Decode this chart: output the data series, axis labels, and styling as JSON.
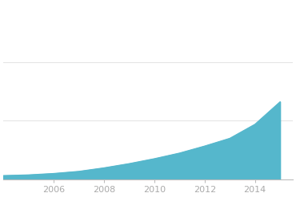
{
  "years": [
    2004,
    2005,
    2006,
    2007,
    2008,
    2009,
    2010,
    2011,
    2012,
    2013,
    2014,
    2015
  ],
  "values": [
    50,
    60,
    80,
    110,
    160,
    220,
    290,
    370,
    470,
    580,
    780,
    1100
  ],
  "fill_color": "#55b7cc",
  "line_color": "#55b7cc",
  "background_color": "#ffffff",
  "grid_color": "#e5e5e5",
  "tick_color": "#aaaaaa",
  "spine_color": "#bbbbbb",
  "xtick_labels": [
    "2006",
    "2008",
    "2010",
    "2012",
    "2014"
  ],
  "xtick_positions": [
    2006,
    2008,
    2010,
    2012,
    2014
  ],
  "xlim": [
    2004,
    2015.5
  ],
  "ylim": [
    0,
    2500
  ],
  "ytick_positions": [
    833,
    1667
  ],
  "figsize": [
    3.7,
    2.47
  ],
  "dpi": 100
}
